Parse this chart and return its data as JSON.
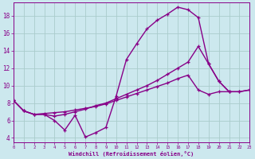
{
  "bg_color": "#cce8ee",
  "line_color": "#880088",
  "grid_color": "#aacccc",
  "xlabel": "Windchill (Refroidissement éolien,°C)",
  "xlim": [
    0,
    23
  ],
  "ylim": [
    3.5,
    19.5
  ],
  "yticks": [
    4,
    6,
    8,
    10,
    12,
    14,
    16,
    18
  ],
  "xticks": [
    0,
    1,
    2,
    3,
    4,
    5,
    6,
    7,
    8,
    9,
    10,
    11,
    12,
    13,
    14,
    15,
    16,
    17,
    18,
    19,
    20,
    21,
    22,
    23
  ],
  "line1_x": [
    0,
    1,
    2,
    3,
    4,
    5,
    6,
    7,
    8,
    9,
    10,
    11,
    12,
    13,
    14,
    15,
    16,
    17,
    18,
    19,
    20,
    21
  ],
  "line1_y": [
    8.3,
    7.1,
    6.7,
    6.7,
    6.0,
    4.9,
    6.6,
    4.1,
    4.6,
    5.2,
    8.8,
    13.0,
    14.8,
    16.5,
    17.5,
    18.2,
    19.0,
    18.7,
    17.8,
    12.5,
    10.5,
    9.3
  ],
  "line2_x": [
    0,
    1,
    2,
    3,
    4,
    5,
    6,
    7,
    8,
    9,
    10,
    11,
    12,
    13,
    14,
    15,
    16,
    17,
    18,
    19,
    20,
    21,
    22,
    23
  ],
  "line2_y": [
    8.3,
    7.1,
    6.7,
    6.7,
    6.5,
    6.7,
    7.0,
    7.3,
    7.7,
    8.0,
    8.5,
    9.0,
    9.5,
    10.0,
    10.6,
    11.3,
    12.0,
    12.7,
    14.5,
    12.5,
    10.5,
    9.3,
    9.3,
    9.5
  ],
  "line3_x": [
    0,
    1,
    2,
    3,
    4,
    5,
    6,
    7,
    8,
    9,
    10,
    11,
    12,
    13,
    14,
    15,
    16,
    17,
    18,
    19,
    20,
    21,
    22,
    23
  ],
  "line3_y": [
    8.3,
    7.1,
    6.7,
    6.8,
    6.9,
    7.0,
    7.2,
    7.4,
    7.6,
    7.9,
    8.3,
    8.7,
    9.1,
    9.5,
    9.9,
    10.3,
    10.8,
    11.2,
    9.5,
    9.0,
    9.3,
    9.3,
    9.3,
    9.5
  ]
}
